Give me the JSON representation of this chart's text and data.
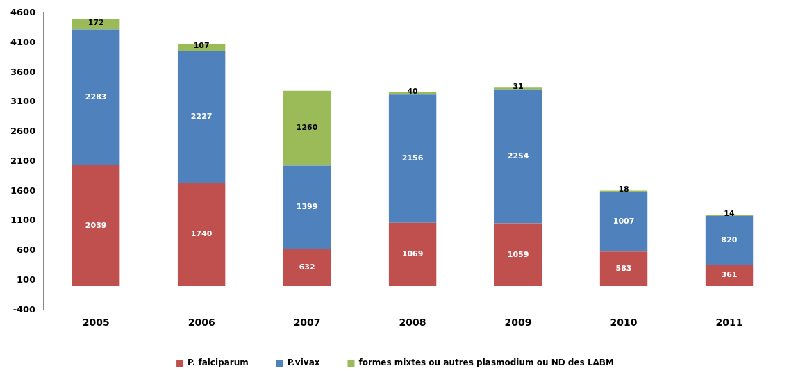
{
  "chart_data": {
    "type": "bar",
    "stacked": true,
    "categories": [
      "2005",
      "2006",
      "2007",
      "2008",
      "2009",
      "2010",
      "2011"
    ],
    "series": [
      {
        "name": "P. falciparum",
        "color": "#c0504d",
        "values": [
          2039,
          1740,
          632,
          1069,
          1059,
          583,
          361
        ]
      },
      {
        "name": "P.vivax",
        "color": "#4f81bd",
        "values": [
          2283,
          2227,
          1399,
          2156,
          2254,
          1007,
          820
        ]
      },
      {
        "name": "formes mixtes ou autres plasmodium ou ND des LABM",
        "color": "#9bbb59",
        "values": [
          172,
          107,
          1260,
          40,
          31,
          18,
          14
        ]
      }
    ],
    "ylim": [
      -400,
      4600
    ],
    "yticks": [
      -400,
      100,
      600,
      1100,
      1600,
      2100,
      2600,
      3100,
      3600,
      4100,
      4600
    ],
    "grid": false,
    "legend": "bottom",
    "data_labels": true
  }
}
